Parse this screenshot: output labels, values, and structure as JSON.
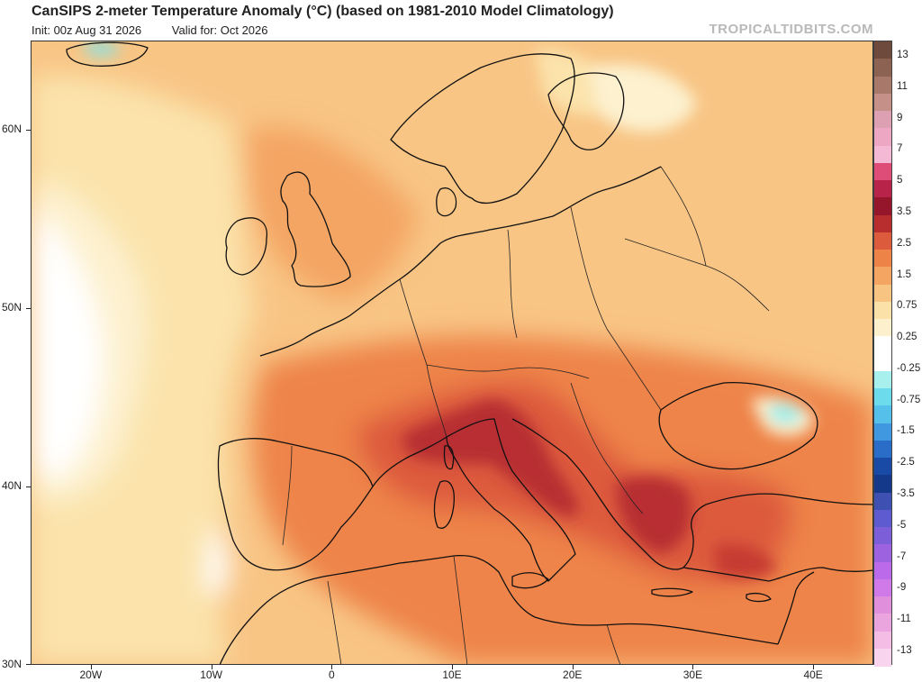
{
  "header": {
    "title": "CanSIPS 2-meter Temperature Anomaly (°C) (based on 1981-2010 Model Climatology)",
    "init": "Init: 00z Aug 31 2026",
    "valid": "Valid for: Oct 2026",
    "watermark": "TROPICALTIDBITS.COM"
  },
  "map": {
    "lon_range": [
      -25,
      45
    ],
    "lat_range": [
      30,
      65
    ],
    "lat_labels": [
      "60N",
      "50N",
      "40N",
      "30N"
    ],
    "lat_values": [
      60,
      50,
      40,
      30
    ],
    "lon_labels": [
      "20W",
      "10W",
      "0",
      "10E",
      "20E",
      "30E",
      "40E"
    ],
    "lon_values": [
      -20,
      -10,
      0,
      10,
      20,
      30,
      40
    ]
  },
  "colorbar": {
    "labels": [
      "13",
      "11",
      "9",
      "7",
      "5",
      "3.5",
      "2.5",
      "1.5",
      "0.75",
      "0.25",
      "-0.25",
      "-0.75",
      "-1.5",
      "-2.5",
      "-3.5",
      "-5",
      "-7",
      "-9",
      "-11",
      "-13"
    ],
    "colors": [
      "#6e4a3c",
      "#8c6353",
      "#a8786b",
      "#c49088",
      "#dd9fb2",
      "#eda7c3",
      "#f4b9d4",
      "#de4d78",
      "#b8234a",
      "#95152a",
      "#b82e2f",
      "#dc5b3c",
      "#ee8348",
      "#f4a561",
      "#f8c482",
      "#fbe0a8",
      "#fdf1cd",
      "#ffffff",
      "#ffffff",
      "#a8f0ee",
      "#6cdcec",
      "#55c1ea",
      "#3f98e0",
      "#2a6dc8",
      "#184aa6",
      "#14388a",
      "#3e51b3",
      "#5e5bd0",
      "#7d5ed9",
      "#9c62e0",
      "#bb6bea",
      "#cf7ae8",
      "#df8fdc",
      "#eaa5df",
      "#f3bde6",
      "#f9d4ef"
    ]
  },
  "map_labels": {}
}
